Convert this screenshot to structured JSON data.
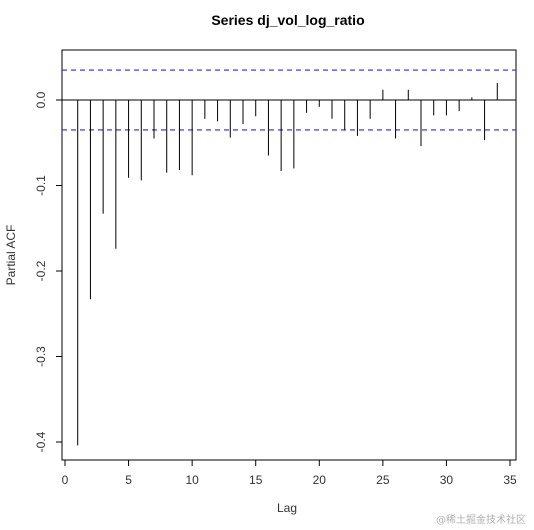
{
  "chart_data": {
    "type": "bar",
    "title": "Series  dj_vol_log_ratio",
    "xlabel": "Lag",
    "ylabel": "Partial ACF",
    "xlim": [
      0,
      35
    ],
    "ylim": [
      -0.42,
      0.06
    ],
    "x_ticks": [
      "0",
      "5",
      "10",
      "15",
      "20",
      "25",
      "30",
      "35"
    ],
    "y_ticks": [
      "-0.4",
      "-0.3",
      "-0.2",
      "-0.1",
      "0.0"
    ],
    "confidence_bound": 0.035,
    "grid": false,
    "lags": [
      1,
      2,
      3,
      4,
      5,
      6,
      7,
      8,
      9,
      10,
      11,
      12,
      13,
      14,
      15,
      16,
      17,
      18,
      19,
      20,
      21,
      22,
      23,
      24,
      25,
      26,
      27,
      28,
      29,
      30,
      31,
      32,
      33,
      34
    ],
    "values": [
      -0.404,
      -0.233,
      -0.133,
      -0.174,
      -0.091,
      -0.094,
      -0.045,
      -0.085,
      -0.082,
      -0.088,
      -0.022,
      -0.025,
      -0.044,
      -0.028,
      -0.019,
      -0.065,
      -0.083,
      -0.08,
      -0.015,
      -0.008,
      -0.022,
      -0.035,
      -0.042,
      -0.022,
      0.012,
      -0.045,
      0.012,
      -0.054,
      -0.018,
      -0.018,
      -0.013,
      0.003,
      -0.047,
      0.02
    ],
    "colors": {
      "bars": "#000000",
      "bounds": "#2b2bd6",
      "axis": "#000000"
    }
  },
  "watermark": "@稀土掘金技术社区"
}
